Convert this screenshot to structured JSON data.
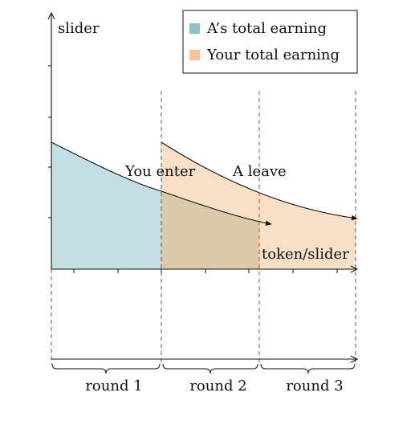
{
  "colors": {
    "a_fill": "#c4dfe3",
    "a_swatch": "#8ec3c6",
    "you_fill": "#f8e0c6",
    "you_swatch": "#f5c596",
    "overlap": "#dacaa9",
    "axis": "#111111",
    "boundary": "#555555",
    "leave_line": "#e23a3a"
  },
  "labels": {
    "y_axis": "slider",
    "x_axis": "token/slider",
    "you_enter": "You enter",
    "a_leave": "A leave"
  },
  "legend": {
    "a_entry": "A’s total earning",
    "you_entry": "Your total earning"
  },
  "rounds": [
    "round 1",
    "round 2",
    "round 3"
  ]
}
